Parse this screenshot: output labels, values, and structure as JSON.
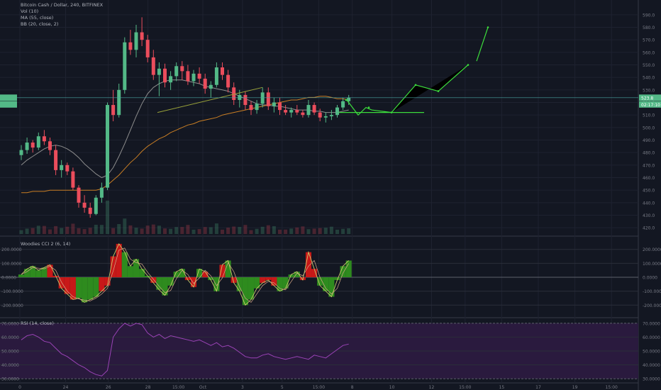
{
  "legend": {
    "title": "Bitcoin Cash / Dollar, 240, BITFINEX",
    "vol": "Vol (10)",
    "ma": "MA (55, close)",
    "bb": "BB (20, close, 2)"
  },
  "colors": {
    "bg": "#131722",
    "up": "#53b987",
    "down": "#eb4d5c",
    "ma": "#c97e24",
    "bb": "#8d8d8d",
    "annotation": "#3cdc3c",
    "cci_line": "#c8c86a",
    "cci_up_fill": "#2e8b1e",
    "cci_down_fill": "#c81818",
    "rsi_line": "#9a43b6",
    "rsi_bg": "#2a1a3e",
    "price_badge": "#53b987"
  },
  "price_axis": {
    "labels": [
      "590.0",
      "580.0",
      "570.0",
      "560.0",
      "550.0",
      "540.0",
      "530.0",
      "520.0",
      "510.0",
      "500.0",
      "490.0",
      "480.0",
      "470.0",
      "460.0",
      "450.0",
      "440.0",
      "430.0",
      "420.0"
    ],
    "current_price": "523.8",
    "countdown": "02:17:10"
  },
  "cci_panel": {
    "title": "Woodies CCI 2 (6, 14)",
    "labels": [
      "200.0000",
      "100.0000",
      "0.0000",
      "-100.0000",
      "-200.0000"
    ]
  },
  "rsi_panel": {
    "title": "RSI (14, close)",
    "labels": [
      "70.0000",
      "60.0000",
      "50.0000",
      "40.0000",
      "30.0000"
    ]
  },
  "time_axis": {
    "labels": [
      "0",
      "24",
      "26",
      "28",
      "15:00",
      "Oct",
      "3",
      "5",
      "15:00",
      "8",
      "10",
      "12",
      "15:00",
      "15",
      "17",
      "19",
      "15:00"
    ]
  },
  "chart_data": [
    {
      "type": "candlestick",
      "title": "Bitcoin Cash / Dollar, 240, BITFINEX",
      "ylim": [
        415,
        595
      ],
      "candles": [
        [
          478,
          486,
          474,
          482
        ],
        [
          482,
          492,
          479,
          488
        ],
        [
          488,
          490,
          480,
          484
        ],
        [
          484,
          496,
          482,
          493
        ],
        [
          493,
          498,
          486,
          489
        ],
        [
          489,
          492,
          478,
          482
        ],
        [
          482,
          486,
          462,
          466
        ],
        [
          466,
          474,
          460,
          470
        ],
        [
          470,
          472,
          462,
          465
        ],
        [
          465,
          468,
          450,
          452
        ],
        [
          452,
          454,
          436,
          440
        ],
        [
          440,
          446,
          432,
          436
        ],
        [
          436,
          440,
          428,
          431
        ],
        [
          431,
          446,
          430,
          444
        ],
        [
          444,
          456,
          440,
          452
        ],
        [
          452,
          520,
          450,
          518
        ],
        [
          518,
          530,
          505,
          510
        ],
        [
          510,
          535,
          508,
          530
        ],
        [
          530,
          572,
          527,
          568
        ],
        [
          568,
          578,
          558,
          562
        ],
        [
          562,
          582,
          556,
          576
        ],
        [
          576,
          588,
          565,
          570
        ],
        [
          570,
          574,
          552,
          556
        ],
        [
          556,
          562,
          538,
          542
        ],
        [
          542,
          552,
          525,
          547
        ],
        [
          547,
          551,
          532,
          536
        ],
        [
          536,
          545,
          530,
          541
        ],
        [
          541,
          552,
          537,
          549
        ],
        [
          549,
          553,
          538,
          545
        ],
        [
          545,
          550,
          534,
          537
        ],
        [
          537,
          546,
          533,
          543
        ],
        [
          543,
          548,
          535,
          539
        ],
        [
          539,
          543,
          527,
          531
        ],
        [
          531,
          537,
          524,
          534
        ],
        [
          534,
          552,
          532,
          548
        ],
        [
          548,
          552,
          538,
          542
        ],
        [
          542,
          546,
          528,
          532
        ],
        [
          532,
          536,
          518,
          522
        ],
        [
          522,
          530,
          516,
          526
        ],
        [
          526,
          529,
          514,
          518
        ],
        [
          518,
          521,
          510,
          514
        ],
        [
          514,
          522,
          511,
          519
        ],
        [
          519,
          532,
          516,
          528
        ],
        [
          528,
          532,
          514,
          517
        ],
        [
          517,
          524,
          512,
          520
        ],
        [
          520,
          524,
          510,
          514
        ],
        [
          514,
          518,
          510,
          512
        ],
        [
          512,
          516,
          508,
          514
        ],
        [
          514,
          518,
          510,
          512
        ],
        [
          512,
          514,
          508,
          510
        ],
        [
          510,
          522,
          508,
          518
        ],
        [
          518,
          520,
          510,
          512
        ],
        [
          512,
          515,
          505,
          508
        ],
        [
          508,
          512,
          504,
          509
        ],
        [
          509,
          514,
          506,
          510
        ],
        [
          510,
          518,
          508,
          516
        ],
        [
          516,
          524,
          514,
          521
        ],
        [
          521,
          526,
          518,
          524
        ]
      ],
      "ma55": [
        448,
        448,
        449,
        449,
        449,
        450,
        450,
        450,
        450,
        450,
        450,
        450,
        450,
        450,
        451,
        454,
        458,
        462,
        467,
        472,
        476,
        481,
        485,
        488,
        491,
        493,
        496,
        498,
        500,
        502,
        503,
        505,
        506,
        507,
        508,
        510,
        511,
        512,
        513,
        514,
        515,
        516,
        517,
        518,
        519,
        520,
        521,
        522,
        522,
        523,
        524,
        524,
        525,
        525,
        524,
        523,
        523,
        522
      ],
      "bb_basis": [
        470,
        474,
        477,
        480,
        483,
        485,
        486,
        485,
        483,
        480,
        476,
        471,
        467,
        463,
        460,
        462,
        468,
        477,
        487,
        498,
        509,
        519,
        527,
        532,
        535,
        537,
        538,
        538,
        538,
        537,
        536,
        535,
        533,
        532,
        531,
        530,
        529,
        527,
        525,
        523,
        521,
        519,
        518,
        518,
        517,
        517,
        516,
        515,
        514,
        514,
        514,
        513,
        513,
        512,
        512,
        512,
        513,
        514
      ]
    },
    {
      "type": "line",
      "title": "Woodies CCI 2 (6, 14)",
      "ylim": [
        -280,
        280
      ],
      "values": [
        20,
        60,
        80,
        50,
        70,
        90,
        10,
        -80,
        -120,
        -160,
        -150,
        -180,
        -160,
        -140,
        -100,
        -60,
        150,
        240,
        180,
        80,
        130,
        60,
        10,
        -40,
        -90,
        -130,
        -60,
        40,
        60,
        -20,
        -70,
        60,
        40,
        -20,
        -100,
        90,
        120,
        -40,
        -100,
        -200,
        -160,
        -80,
        -40,
        -20,
        -60,
        -100,
        -80,
        20,
        40,
        -20,
        180,
        60,
        -60,
        -100,
        -140,
        -20,
        80,
        120
      ],
      "ylabels": [
        "200.0000",
        "100.0000",
        "0.0000",
        "-100.0000",
        "-200.0000"
      ]
    },
    {
      "type": "line",
      "title": "RSI (14, close)",
      "ylim": [
        28,
        73
      ],
      "values": [
        58,
        61,
        62,
        60,
        57,
        56,
        52,
        48,
        46,
        43,
        40,
        38,
        35,
        33,
        32,
        36,
        60,
        66,
        70,
        68,
        70,
        69,
        63,
        60,
        62,
        59,
        61,
        60,
        59,
        58,
        57,
        58,
        56,
        54,
        56,
        53,
        54,
        52,
        49,
        46,
        45,
        45,
        47,
        48,
        46,
        45,
        44,
        45,
        46,
        45,
        44,
        47,
        46,
        45,
        48,
        51,
        54,
        55
      ],
      "ylabels": [
        "70.0000",
        "60.0000",
        "50.0000",
        "40.0000",
        "30.0000"
      ]
    }
  ]
}
